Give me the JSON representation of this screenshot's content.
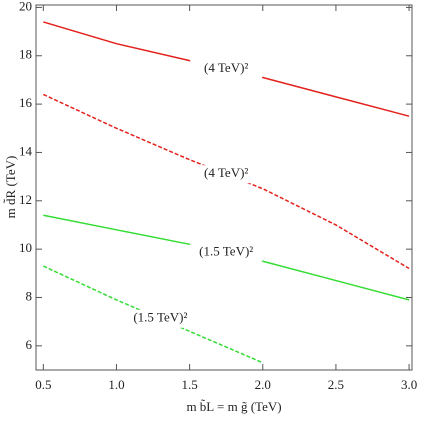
{
  "chart_data": {
    "type": "line",
    "x_label": "m b̃L = m g̃ (TeV)",
    "y_label": "m d̃R (TeV)",
    "x": [
      0.5,
      1,
      1.5,
      2,
      2.5,
      3
    ],
    "series": [
      {
        "color": "#e3211c",
        "style": "solid",
        "values": [
          19.4,
          18.5,
          17.8,
          17.1,
          16.3,
          15.5
        ],
        "annotation": "(4 TeV)²"
      },
      {
        "color": "#e3211c",
        "style": "dashed",
        "values": [
          16.4,
          15.0,
          13.7,
          12.5,
          11.0,
          9.2
        ],
        "annotation": "(4 TeV)²"
      },
      {
        "color": "#33dd33",
        "style": "solid",
        "values": [
          11.4,
          10.8,
          10.2,
          9.5,
          8.7,
          7.9
        ],
        "annotation": "(1.5 TeV)²"
      },
      {
        "color": "#33dd33",
        "style": "dashed",
        "values": [
          9.3,
          7.9,
          6.6,
          5.3,
          null,
          null
        ],
        "annotation": "(1.5 TeV)²"
      }
    ],
    "xlim": [
      0.45,
      3.02
    ],
    "ylim": [
      5.0,
      20.1
    ],
    "xticks": [
      0.5,
      {
        "value": 1,
        "label": "1.0"
      },
      1.5,
      {
        "value": 2,
        "label": "2.0"
      },
      2.5,
      {
        "value": 3,
        "label": "3.0"
      }
    ],
    "yticks": [
      6,
      8,
      10,
      12,
      14,
      16,
      18,
      20
    ],
    "grid": false
  }
}
